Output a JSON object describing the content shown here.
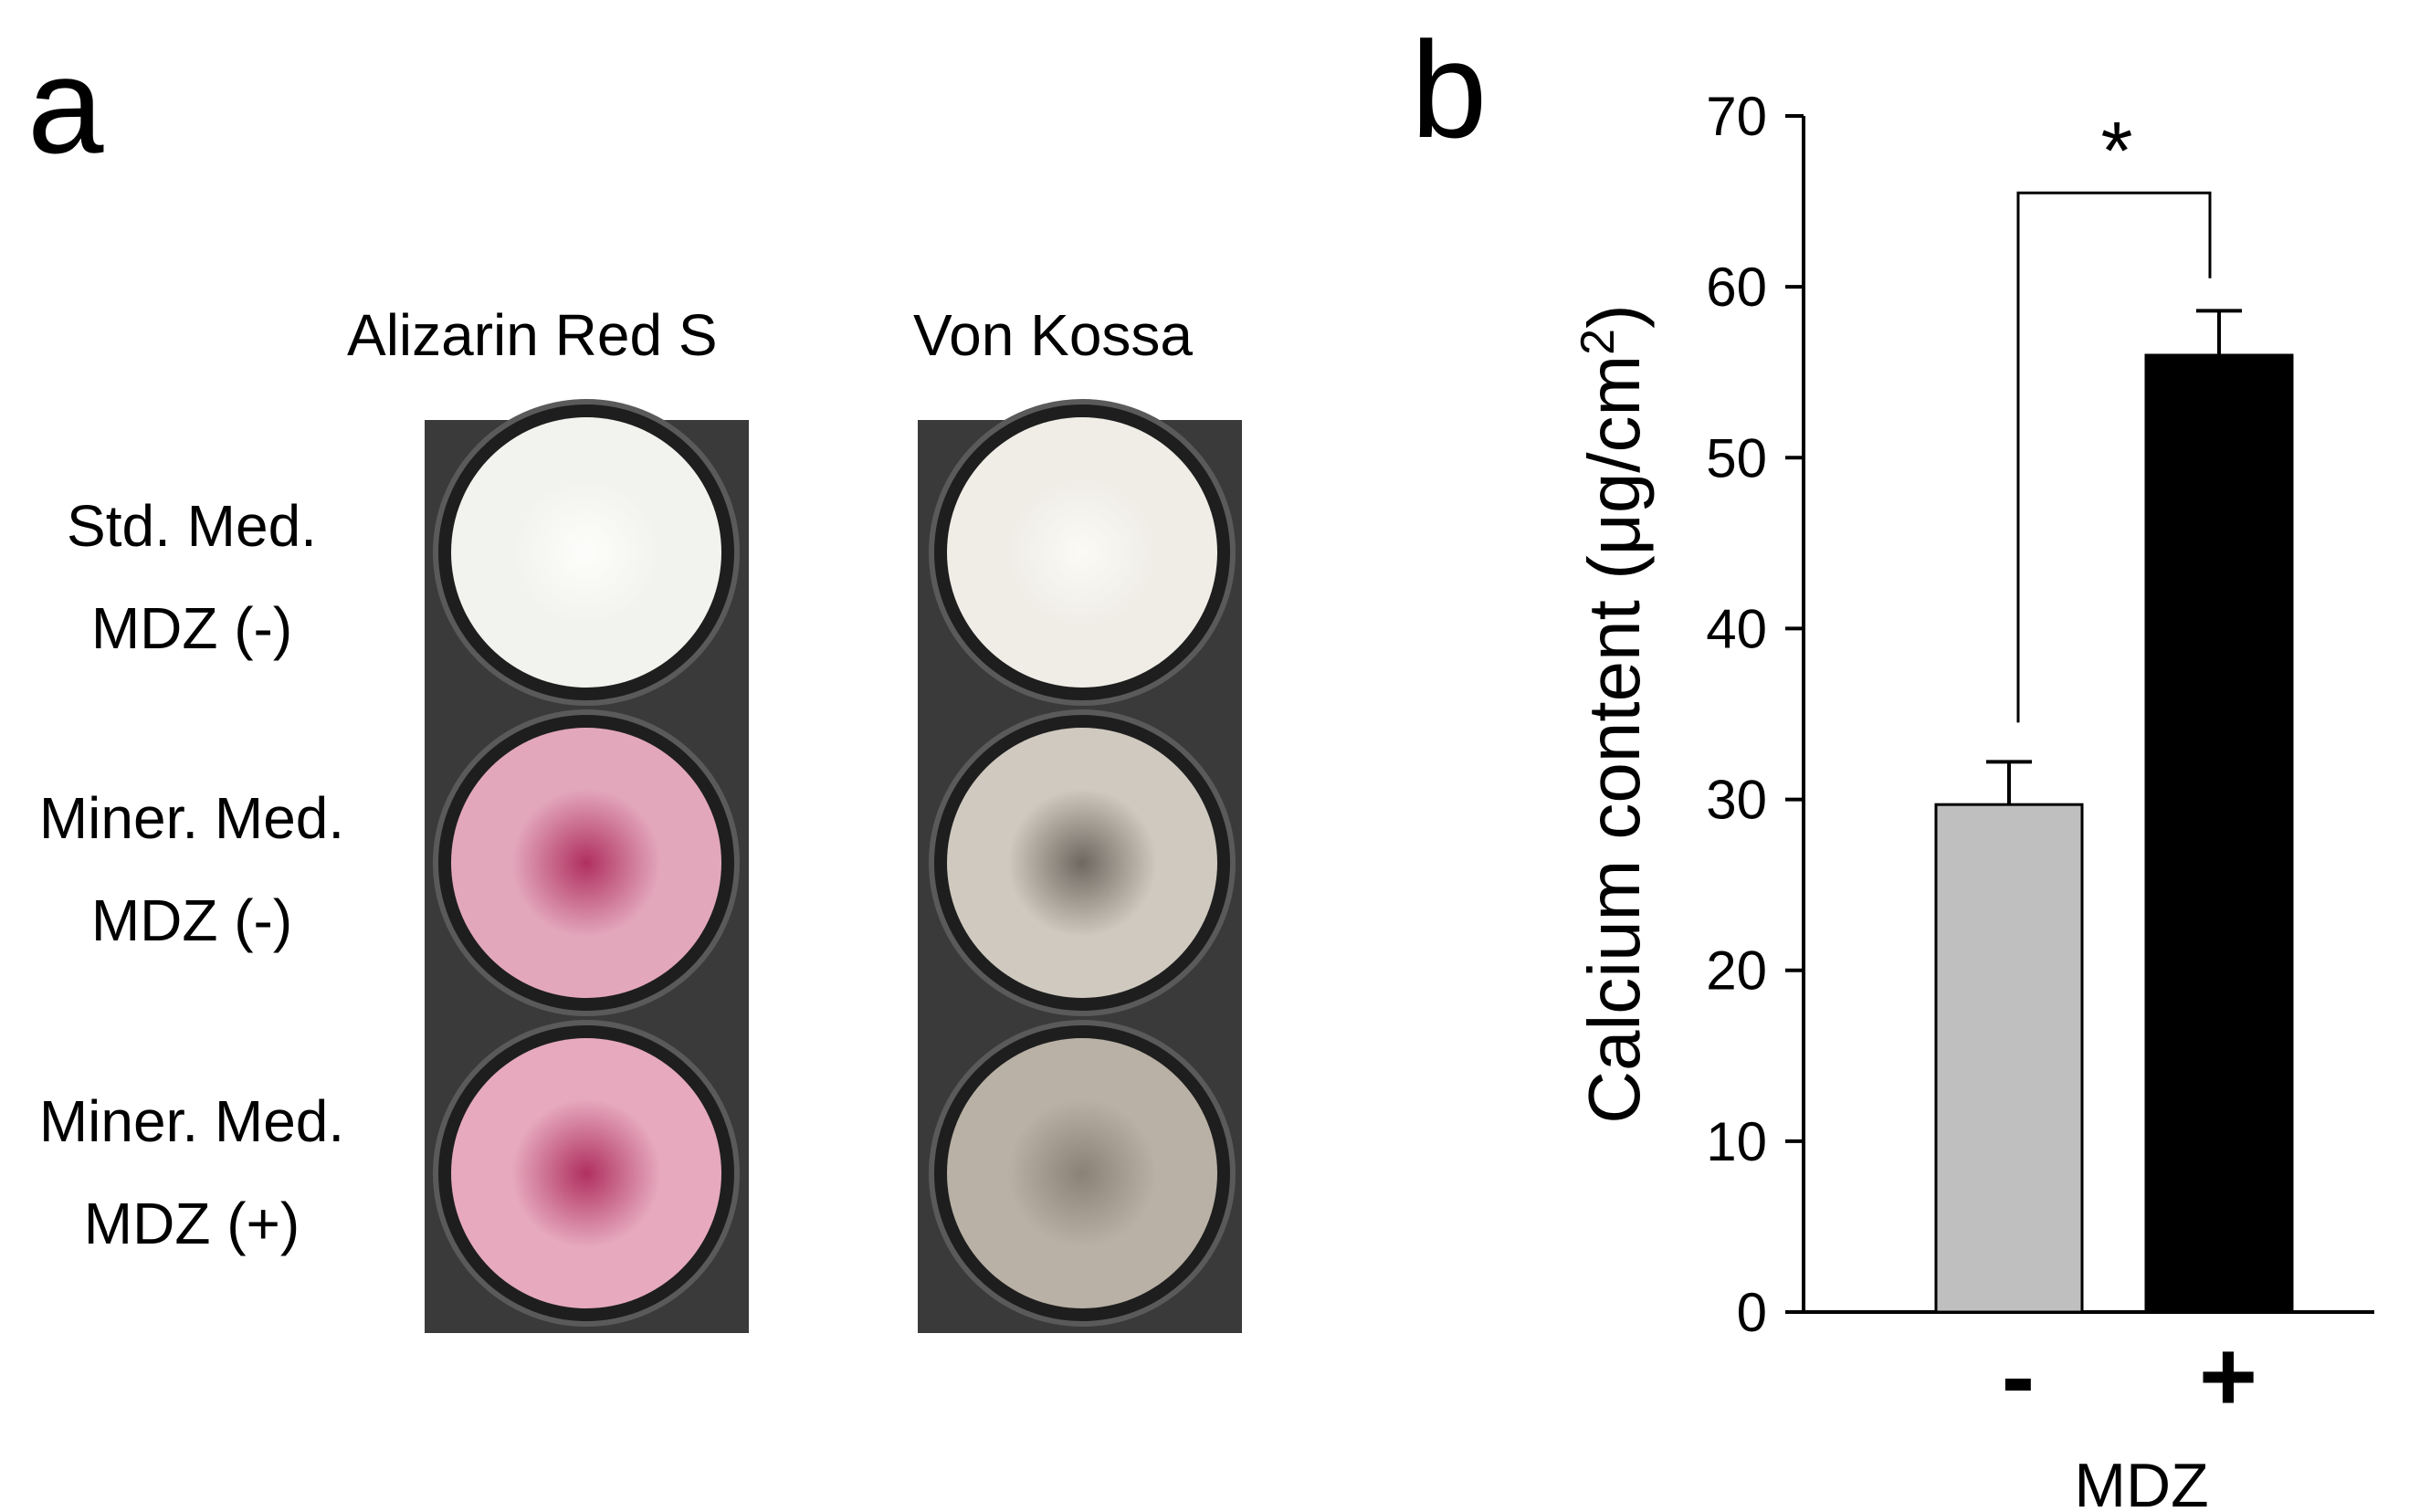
{
  "panel_a": {
    "letter": "a",
    "columns": [
      "Alizarin Red S",
      "Von Kossa"
    ],
    "rows": [
      {
        "line1": "Std. Med.",
        "line2": "MDZ (-)"
      },
      {
        "line1": "Miner. Med.",
        "line2": "MDZ (-)"
      },
      {
        "line1": "Miner. Med.",
        "line2": "MDZ (+)"
      }
    ],
    "wells": [
      {
        "stain": "alizarin",
        "condition": "std-mdz-minus",
        "center": "#fdfdfb",
        "edge": "#f2f2ee"
      },
      {
        "stain": "alizarin",
        "condition": "miner-mdz-minus",
        "center": "#b0305f",
        "edge": "#e3a7bc"
      },
      {
        "stain": "alizarin",
        "condition": "miner-mdz-plus",
        "center": "#b0305f",
        "edge": "#e6a9be"
      },
      {
        "stain": "vonkossa",
        "condition": "std-mdz-minus",
        "center": "#fbfaf6",
        "edge": "#efede6"
      },
      {
        "stain": "vonkossa",
        "condition": "miner-mdz-minus",
        "center": "#6f6860",
        "edge": "#cfc9bf"
      },
      {
        "stain": "vonkossa",
        "condition": "miner-mdz-plus",
        "center": "#8a8276",
        "edge": "#b9b1a5"
      }
    ]
  },
  "panel_b": {
    "letter": "b",
    "significance_marker": "*"
  },
  "chart_data": {
    "type": "bar",
    "categories": [
      "-",
      "+"
    ],
    "values": [
      29.7,
      56.0
    ],
    "errors": [
      2.5,
      2.6
    ],
    "colors": [
      "#bfbfbf",
      "#000000"
    ],
    "ylabel_main": "Calcium content (μg/cm",
    "ylabel_sup": "2",
    "ylabel_close": ")",
    "xlabel": "MDZ",
    "ylim": [
      0,
      70
    ],
    "yticks": [
      0,
      10,
      20,
      30,
      40,
      50,
      60,
      70
    ],
    "grid": false,
    "legend": "none"
  }
}
